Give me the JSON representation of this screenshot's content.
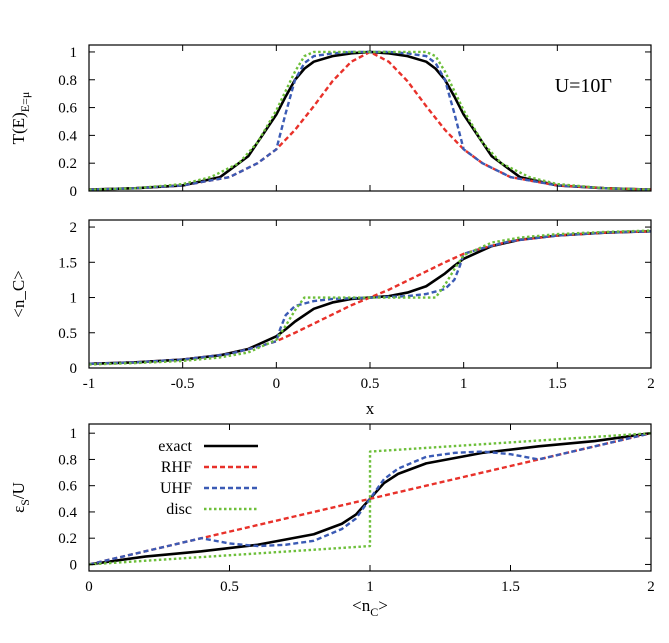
{
  "chart_data": [
    {
      "type": "line",
      "id": "transmission",
      "ylabel_main": "T(E)",
      "ylabel_sub": "E=μ",
      "xlabel": "",
      "xlim": [
        -1,
        2
      ],
      "ylim": [
        0,
        1.05
      ],
      "xticks": [
        -1,
        -0.5,
        0,
        0.5,
        1,
        1.5,
        2
      ],
      "xtick_labels_visible": false,
      "yticks": [
        0,
        0.2,
        0.4,
        0.6,
        0.8,
        1
      ],
      "ytick_labels": [
        "0",
        "0.2",
        "0.4",
        "0.6",
        "0.8",
        "1"
      ],
      "annotation": "U=10Γ",
      "grid": false,
      "series": [
        {
          "key": "exact",
          "color": "#000000",
          "dash": "solid",
          "x": [
            -1,
            -0.75,
            -0.5,
            -0.3,
            -0.15,
            0,
            0.05,
            0.1,
            0.15,
            0.2,
            0.3,
            0.4,
            0.5,
            0.6,
            0.7,
            0.8,
            0.85,
            0.9,
            0.95,
            1,
            1.15,
            1.3,
            1.5,
            1.75,
            2
          ],
          "y": [
            0.01,
            0.02,
            0.04,
            0.1,
            0.25,
            0.55,
            0.68,
            0.8,
            0.88,
            0.93,
            0.97,
            0.99,
            1.0,
            0.99,
            0.97,
            0.93,
            0.88,
            0.8,
            0.68,
            0.55,
            0.25,
            0.1,
            0.04,
            0.02,
            0.01
          ]
        },
        {
          "key": "RHF",
          "color": "#e8312a",
          "dash": "dashed",
          "x": [
            -1,
            -0.75,
            -0.5,
            -0.25,
            -0.1,
            0,
            0.1,
            0.2,
            0.3,
            0.4,
            0.5,
            0.6,
            0.7,
            0.8,
            0.9,
            1,
            1.1,
            1.25,
            1.5,
            1.75,
            2
          ],
          "y": [
            0.01,
            0.02,
            0.04,
            0.1,
            0.2,
            0.3,
            0.44,
            0.61,
            0.79,
            0.93,
            1.0,
            0.93,
            0.79,
            0.61,
            0.44,
            0.3,
            0.2,
            0.1,
            0.04,
            0.02,
            0.01
          ]
        },
        {
          "key": "UHF",
          "color": "#3b5bb5",
          "dash": "dashed",
          "x": [
            -1,
            -0.75,
            -0.5,
            -0.25,
            -0.1,
            0,
            0.05,
            0.1,
            0.15,
            0.2,
            0.3,
            0.4,
            0.5,
            0.6,
            0.7,
            0.8,
            0.85,
            0.9,
            0.95,
            1,
            1.1,
            1.25,
            1.5,
            1.75,
            2
          ],
          "y": [
            0.01,
            0.02,
            0.04,
            0.1,
            0.2,
            0.3,
            0.56,
            0.8,
            0.92,
            0.97,
            0.99,
            1.0,
            1.0,
            1.0,
            0.99,
            0.97,
            0.92,
            0.8,
            0.56,
            0.3,
            0.2,
            0.1,
            0.04,
            0.02,
            0.01
          ]
        },
        {
          "key": "disc",
          "color": "#6dbf3a",
          "dash": "dotted",
          "x": [
            -1,
            -0.75,
            -0.5,
            -0.35,
            -0.2,
            -0.1,
            0,
            0.05,
            0.1,
            0.15,
            0.2,
            0.5,
            0.8,
            0.85,
            0.9,
            0.95,
            1,
            1.1,
            1.2,
            1.35,
            1.5,
            1.75,
            2
          ],
          "y": [
            0.01,
            0.02,
            0.05,
            0.1,
            0.2,
            0.35,
            0.58,
            0.72,
            0.86,
            0.97,
            1.0,
            1.0,
            1.0,
            0.97,
            0.86,
            0.72,
            0.58,
            0.35,
            0.2,
            0.1,
            0.05,
            0.02,
            0.01
          ]
        }
      ]
    },
    {
      "type": "line",
      "id": "occupation",
      "ylabel": "<n_C>",
      "xlabel": "x",
      "xlim": [
        -1,
        2
      ],
      "ylim": [
        0,
        2.1
      ],
      "xticks": [
        -1,
        -0.5,
        0,
        0.5,
        1,
        1.5,
        2
      ],
      "xtick_labels": [
        "-1",
        "-0.5",
        "0",
        "0.5",
        "1",
        "1.5",
        "2"
      ],
      "yticks": [
        0,
        0.5,
        1,
        1.5,
        2
      ],
      "ytick_labels": [
        "0",
        "0.5",
        "1",
        "1.5",
        "2"
      ],
      "grid": false,
      "series": [
        {
          "key": "exact",
          "color": "#000000",
          "dash": "solid",
          "x": [
            -1,
            -0.75,
            -0.5,
            -0.3,
            -0.15,
            0,
            0.05,
            0.1,
            0.2,
            0.3,
            0.4,
            0.5,
            0.6,
            0.7,
            0.8,
            0.9,
            0.95,
            1,
            1.15,
            1.3,
            1.5,
            1.75,
            2
          ],
          "y": [
            0.06,
            0.08,
            0.12,
            0.18,
            0.27,
            0.45,
            0.55,
            0.66,
            0.84,
            0.93,
            0.98,
            1.0,
            1.02,
            1.07,
            1.16,
            1.34,
            1.45,
            1.55,
            1.73,
            1.82,
            1.88,
            1.92,
            1.94
          ]
        },
        {
          "key": "RHF",
          "color": "#e8312a",
          "dash": "dashed",
          "x": [
            -1,
            -0.75,
            -0.5,
            -0.25,
            -0.1,
            0,
            0.1,
            0.2,
            0.3,
            0.4,
            0.5,
            0.6,
            0.7,
            0.8,
            0.9,
            1,
            1.1,
            1.25,
            1.5,
            1.75,
            2
          ],
          "y": [
            0.06,
            0.08,
            0.12,
            0.2,
            0.3,
            0.38,
            0.5,
            0.63,
            0.76,
            0.89,
            1.0,
            1.11,
            1.24,
            1.37,
            1.5,
            1.62,
            1.7,
            1.8,
            1.88,
            1.92,
            1.94
          ]
        },
        {
          "key": "UHF",
          "color": "#3b5bb5",
          "dash": "dashed",
          "x": [
            -1,
            -0.75,
            -0.5,
            -0.25,
            -0.1,
            0,
            0.02,
            0.05,
            0.1,
            0.2,
            0.3,
            0.5,
            0.7,
            0.8,
            0.9,
            0.95,
            0.98,
            1,
            1.1,
            1.25,
            1.5,
            1.75,
            2
          ],
          "y": [
            0.06,
            0.08,
            0.12,
            0.2,
            0.3,
            0.38,
            0.55,
            0.75,
            0.88,
            0.95,
            0.98,
            1.0,
            1.02,
            1.05,
            1.12,
            1.25,
            1.45,
            1.62,
            1.7,
            1.8,
            1.88,
            1.92,
            1.94
          ]
        },
        {
          "key": "disc",
          "color": "#6dbf3a",
          "dash": "dotted",
          "x": [
            -1,
            -0.75,
            -0.5,
            -0.3,
            -0.15,
            0,
            0.05,
            0.1,
            0.15,
            0.5,
            0.85,
            0.9,
            0.95,
            1,
            1.15,
            1.3,
            1.5,
            1.75,
            2
          ],
          "y": [
            0.05,
            0.07,
            0.1,
            0.15,
            0.22,
            0.4,
            0.6,
            0.82,
            1.0,
            1.0,
            1.0,
            1.18,
            1.4,
            1.6,
            1.78,
            1.85,
            1.9,
            1.93,
            1.95
          ]
        }
      ]
    },
    {
      "type": "line",
      "id": "energy",
      "ylabel_main": "ε",
      "ylabel_sub": "S",
      "ylabel_suffix": "/U",
      "xlabel_main": "<n",
      "xlabel_sub": "C",
      "xlabel_suffix": ">",
      "xlim": [
        0,
        2
      ],
      "ylim": [
        -0.05,
        1.07
      ],
      "xticks": [
        0,
        0.5,
        1,
        1.5,
        2
      ],
      "xtick_labels": [
        "0",
        "0.5",
        "1",
        "1.5",
        "2"
      ],
      "yticks": [
        0,
        0.2,
        0.4,
        0.6,
        0.8,
        1
      ],
      "ytick_labels": [
        "0",
        "0.2",
        "0.4",
        "0.6",
        "0.8",
        "1"
      ],
      "legend_position": "top-left",
      "grid": false,
      "series": [
        {
          "key": "exact",
          "name": "exact",
          "color": "#000000",
          "dash": "solid",
          "x": [
            0,
            0.2,
            0.4,
            0.6,
            0.8,
            0.9,
            0.95,
            1,
            1.05,
            1.1,
            1.2,
            1.4,
            1.6,
            1.8,
            2
          ],
          "y": [
            0,
            0.06,
            0.1,
            0.15,
            0.23,
            0.31,
            0.38,
            0.5,
            0.62,
            0.69,
            0.77,
            0.85,
            0.9,
            0.94,
            1.0
          ]
        },
        {
          "key": "RHF",
          "name": "RHF",
          "color": "#e8312a",
          "dash": "dashed",
          "x": [
            0,
            0.5,
            1,
            1.5,
            2
          ],
          "y": [
            0,
            0.25,
            0.5,
            0.75,
            1.0
          ]
        },
        {
          "key": "UHF",
          "name": "UHF",
          "color": "#3b5bb5",
          "dash": "dashed",
          "x": [
            0,
            0.2,
            0.4,
            0.5,
            0.6,
            0.7,
            0.8,
            0.9,
            0.95,
            1,
            1.05,
            1.1,
            1.2,
            1.3,
            1.4,
            1.5,
            1.6,
            1.8,
            2
          ],
          "y": [
            0,
            0.1,
            0.2,
            0.16,
            0.14,
            0.15,
            0.18,
            0.27,
            0.35,
            0.5,
            0.65,
            0.73,
            0.82,
            0.85,
            0.86,
            0.84,
            0.8,
            0.9,
            1.0
          ]
        },
        {
          "key": "disc",
          "name": "disc",
          "color": "#6dbf3a",
          "dash": "dotted",
          "x": [
            0,
            0.5,
            0.9999,
            1.0001,
            1.5,
            2
          ],
          "y": [
            0,
            0.07,
            0.14,
            0.86,
            0.93,
            1.0
          ]
        }
      ]
    }
  ]
}
